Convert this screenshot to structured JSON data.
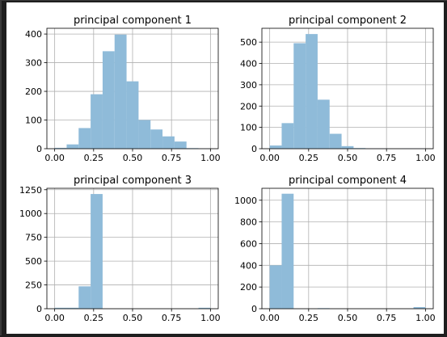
{
  "chart_data": [
    {
      "type": "bar",
      "title": "principal component 1",
      "bin_edges": [
        0.0,
        0.0769,
        0.1538,
        0.2308,
        0.3077,
        0.3846,
        0.4615,
        0.5385,
        0.6154,
        0.6923,
        0.7692,
        0.8462,
        0.9231,
        1.0
      ],
      "values": [
        3,
        15,
        72,
        190,
        340,
        398,
        235,
        100,
        67,
        43,
        25,
        2,
        1
      ],
      "xlim": [
        -0.05,
        1.05
      ],
      "ylim": [
        0,
        420
      ],
      "xticks": [
        0.0,
        0.25,
        0.5,
        0.75,
        1.0
      ],
      "xtick_labels": [
        "0.00",
        "0.25",
        "0.50",
        "0.75",
        "1.00"
      ],
      "yticks": [
        0,
        100,
        200,
        300,
        400
      ],
      "ytick_labels": [
        "0",
        "100",
        "200",
        "300",
        "400"
      ],
      "grid": true,
      "color": "#8fbbd9"
    },
    {
      "type": "bar",
      "title": "principal component 2",
      "bin_edges": [
        0.0,
        0.0769,
        0.1538,
        0.2308,
        0.3077,
        0.3846,
        0.4615,
        0.5385,
        0.6154,
        0.6923,
        0.7692,
        0.8462,
        0.9231,
        1.0
      ],
      "values": [
        15,
        120,
        495,
        538,
        230,
        70,
        12,
        3,
        1,
        1,
        0,
        1,
        1
      ],
      "xlim": [
        -0.05,
        1.05
      ],
      "ylim": [
        0,
        565
      ],
      "xticks": [
        0.0,
        0.25,
        0.5,
        0.75,
        1.0
      ],
      "xtick_labels": [
        "0.00",
        "0.25",
        "0.50",
        "0.75",
        "1.00"
      ],
      "yticks": [
        0,
        100,
        200,
        300,
        400,
        500
      ],
      "ytick_labels": [
        "0",
        "100",
        "200",
        "300",
        "400",
        "500"
      ],
      "grid": true,
      "color": "#8fbbd9"
    },
    {
      "type": "bar",
      "title": "principal component 3",
      "bin_edges": [
        0.0,
        0.0769,
        0.1538,
        0.2308,
        0.3077,
        0.3846,
        0.4615,
        0.5385,
        0.6154,
        0.6923,
        0.7692,
        0.8462,
        0.9231,
        1.0
      ],
      "values": [
        10,
        10,
        235,
        1205,
        0,
        0,
        0,
        0,
        0,
        0,
        0,
        0,
        10
      ],
      "xlim": [
        -0.05,
        1.05
      ],
      "ylim": [
        0,
        1265
      ],
      "xticks": [
        0.0,
        0.25,
        0.5,
        0.75,
        1.0
      ],
      "xtick_labels": [
        "0.00",
        "0.25",
        "0.50",
        "0.75",
        "1.00"
      ],
      "yticks": [
        0,
        250,
        500,
        750,
        1000,
        1250
      ],
      "ytick_labels": [
        "0",
        "250",
        "500",
        "750",
        "1000",
        "1250"
      ],
      "grid": true,
      "color": "#8fbbd9"
    },
    {
      "type": "bar",
      "title": "principal component 4",
      "bin_edges": [
        0.0,
        0.0769,
        0.1538,
        0.2308,
        0.3077,
        0.3846,
        0.4615,
        0.5385,
        0.6154,
        0.6923,
        0.7692,
        0.8462,
        0.9231,
        1.0
      ],
      "values": [
        400,
        1060,
        0,
        0,
        5,
        0,
        0,
        0,
        0,
        0,
        0,
        0,
        15
      ],
      "xlim": [
        -0.05,
        1.05
      ],
      "ylim": [
        0,
        1110
      ],
      "xticks": [
        0.0,
        0.25,
        0.5,
        0.75,
        1.0
      ],
      "xtick_labels": [
        "0.00",
        "0.25",
        "0.50",
        "0.75",
        "1.00"
      ],
      "yticks": [
        0,
        200,
        400,
        600,
        800,
        1000
      ],
      "ytick_labels": [
        "0",
        "200",
        "400",
        "600",
        "800",
        "1000"
      ],
      "grid": true,
      "color": "#8fbbd9"
    }
  ]
}
